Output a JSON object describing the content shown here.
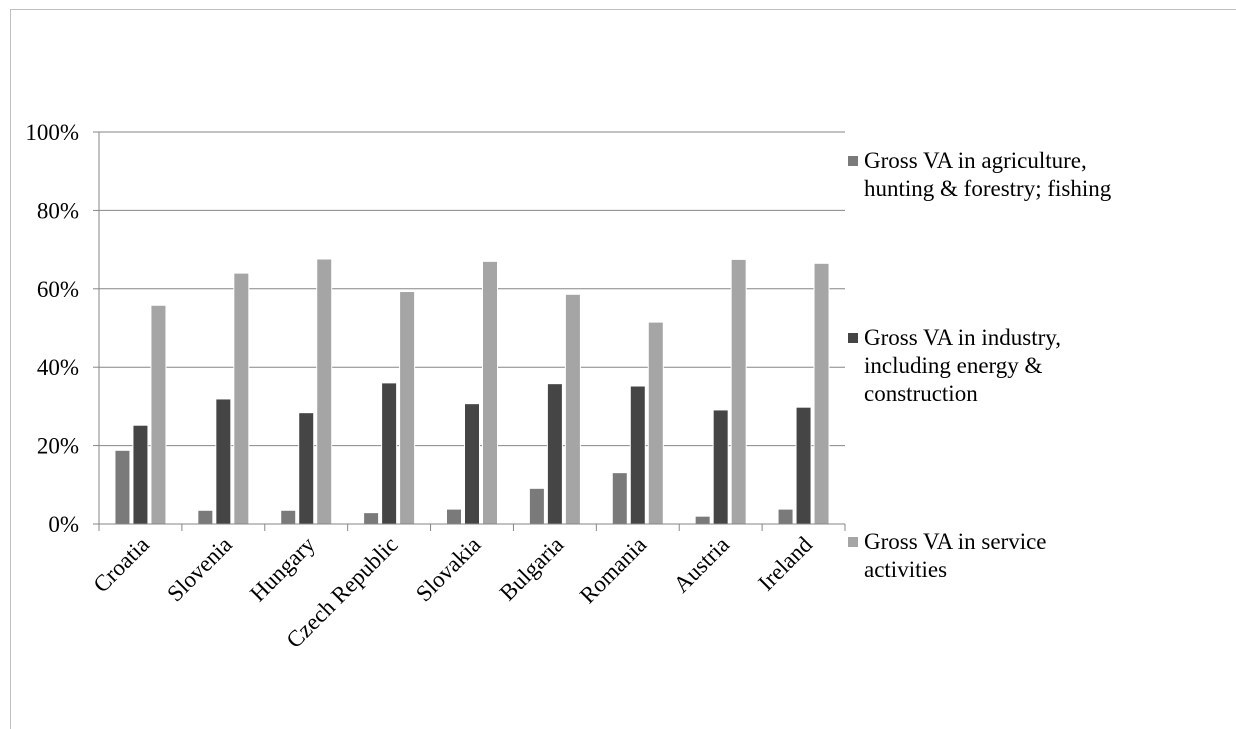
{
  "chart_data": {
    "type": "bar",
    "categories": [
      "Croatia",
      "Slovenia",
      "Hungary",
      "Czech Republic",
      "Slovakia",
      "Bulgaria",
      "Romania",
      "Austria",
      "Ireland"
    ],
    "series": [
      {
        "name": "Gross VA in agriculture, hunting & forestry; fishing",
        "color": "#7a7a7a",
        "values": [
          18.8,
          3.5,
          3.5,
          2.9,
          3.8,
          9.1,
          13.1,
          2.0,
          3.8
        ]
      },
      {
        "name": "Gross VA in industry, including energy & construction",
        "color": "#454545",
        "values": [
          25.2,
          31.9,
          28.4,
          36.0,
          30.7,
          35.8,
          35.2,
          29.1,
          29.8
        ]
      },
      {
        "name": "Gross VA in service activities",
        "color": "#a5a5a5",
        "values": [
          55.8,
          64.0,
          67.6,
          59.3,
          67.0,
          58.6,
          51.5,
          67.5,
          66.5
        ]
      }
    ],
    "yticks": [
      "0%",
      "20%",
      "40%",
      "60%",
      "80%",
      "100%"
    ],
    "ylim": [
      0,
      100
    ],
    "grid": true,
    "legend_position": "right"
  }
}
